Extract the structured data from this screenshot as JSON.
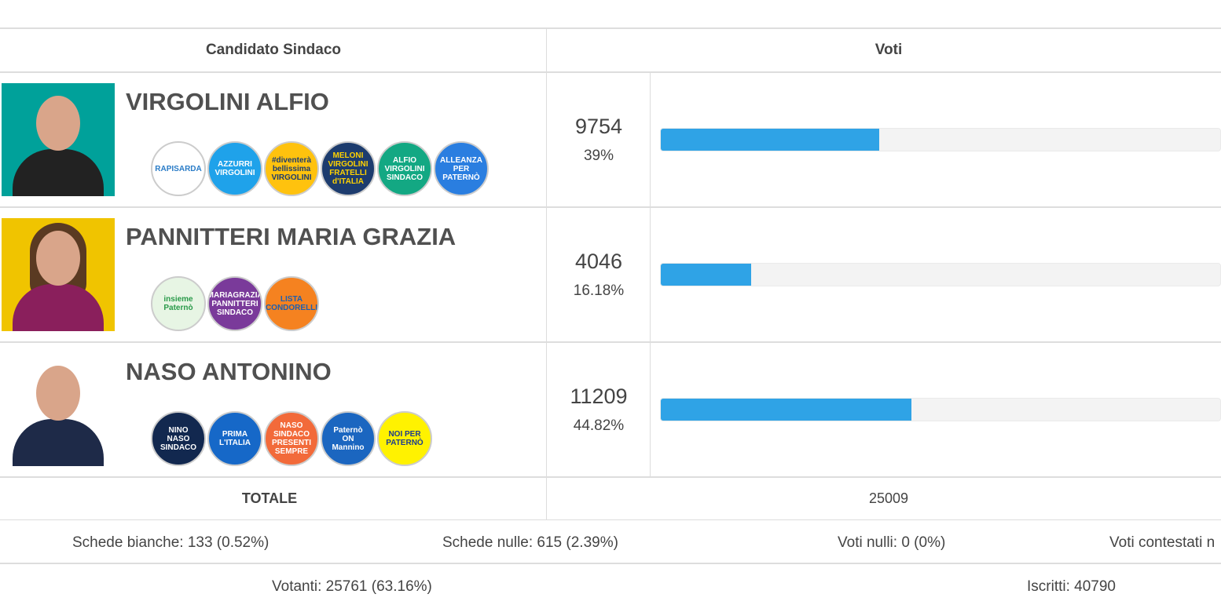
{
  "header": {
    "candidate": "Candidato Sindaco",
    "votes": "Voti"
  },
  "accent": "#2fa3e6",
  "candidates": [
    {
      "name": "VIRGOLINI ALFIO",
      "votes": "9754",
      "percent": "39%",
      "share": 39,
      "photo_bg": "#00a19a",
      "suit": "#222",
      "logos": [
        {
          "text": "RAPISARDA",
          "bg": "#ffffff",
          "fg": "#2a7cc7"
        },
        {
          "text": "AZZURRI VIRGOLINI",
          "bg": "#1fa2ea",
          "fg": "#ffffff"
        },
        {
          "text": "#diventerà bellissima VIRGOLINI",
          "bg": "#ffc20e",
          "fg": "#1d3c6e"
        },
        {
          "text": "MELONI VIRGOLINI FRATELLI d'ITALIA",
          "bg": "#1d3c6e",
          "fg": "#ffd200"
        },
        {
          "text": "ALFIO VIRGOLINI SINDACO",
          "bg": "#13a883",
          "fg": "#ffffff"
        },
        {
          "text": "ALLEANZA PER PATERNÒ",
          "bg": "#2a7ee0",
          "fg": "#ffffff"
        }
      ]
    },
    {
      "name": "PANNITTERI MARIA GRAZIA",
      "votes": "4046",
      "percent": "16.18%",
      "share": 16.18,
      "photo_bg": "#f0c400",
      "suit": "#8a1f5c",
      "logos": [
        {
          "text": "insieme Paternò",
          "bg": "#e7f5e4",
          "fg": "#2a9a4a"
        },
        {
          "text": "MARIAGRAZIA PANNITTERI SINDACO",
          "bg": "#7a3a9a",
          "fg": "#ffffff"
        },
        {
          "text": "LISTA CONDORELLI",
          "bg": "#f58220",
          "fg": "#1d5fb0"
        }
      ]
    },
    {
      "name": "NASO ANTONINO",
      "votes": "11209",
      "percent": "44.82%",
      "share": 44.82,
      "photo_bg": "#ffffff",
      "suit": "#1e2a48",
      "logos": [
        {
          "text": "NINO NASO SINDACO",
          "bg": "#12284f",
          "fg": "#ffffff"
        },
        {
          "text": "PRIMA L'ITALIA",
          "bg": "#1668c8",
          "fg": "#ffffff"
        },
        {
          "text": "NASO SINDACO PRESENTI SEMPRE",
          "bg": "#f26a3a",
          "fg": "#ffffff"
        },
        {
          "text": "Paternò ON Mannino",
          "bg": "#1b66c0",
          "fg": "#ffffff"
        },
        {
          "text": "NOI PER PATERNÒ",
          "bg": "#fff200",
          "fg": "#1d3c8e"
        }
      ]
    }
  ],
  "total": {
    "label": "TOTALE",
    "value": "25009"
  },
  "stats": {
    "bianche": "Schede bianche: 133 (0.52%)",
    "nulle": "Schede nulle: 615 (2.39%)",
    "voti_nulli": "Voti nulli: 0 (0%)",
    "contestati": "Voti contestati n"
  },
  "turnout": {
    "votanti": "Votanti: 25761 (63.16%)",
    "iscritti": "Iscritti: 40790"
  }
}
